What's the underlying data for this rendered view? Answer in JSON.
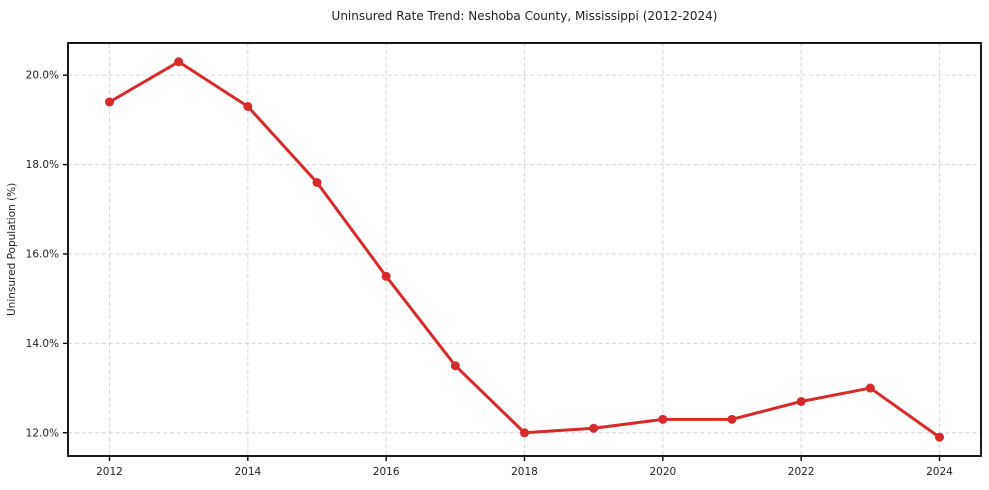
{
  "chart_data": {
    "type": "line",
    "title": "Uninsured Rate Trend: Neshoba County, Mississippi (2012-2024)",
    "xlabel": "",
    "ylabel": "Uninsured Population (%)",
    "x": [
      2012,
      2013,
      2014,
      2015,
      2016,
      2017,
      2018,
      2019,
      2020,
      2021,
      2022,
      2023,
      2024
    ],
    "series": [
      {
        "name": "Uninsured rate",
        "values": [
          19.4,
          20.3,
          19.3,
          17.6,
          15.5,
          13.5,
          12.0,
          12.1,
          12.3,
          12.3,
          12.7,
          13.0,
          11.9
        ]
      }
    ],
    "xlim": [
      2011.4,
      2024.6
    ],
    "ylim": [
      11.48,
      20.72
    ],
    "xticks": [
      2012,
      2014,
      2016,
      2018,
      2020,
      2022,
      2024
    ],
    "xtick_labels": [
      "2012",
      "2014",
      "2016",
      "2018",
      "2020",
      "2022",
      "2024"
    ],
    "yticks": [
      12,
      14,
      16,
      18,
      20
    ],
    "ytick_labels": [
      "12.0%",
      "14.0%",
      "16.0%",
      "18.0%",
      "20.0%"
    ],
    "grid": true,
    "legend": "none",
    "marker": "circle",
    "style": {
      "line_color": "#d62a2b",
      "marker_color": "#d62a2b",
      "grid_color": "#d6d6d6",
      "axis_color": "#000000",
      "text_color": "#1f1f1f",
      "background": "#ffffff"
    }
  }
}
